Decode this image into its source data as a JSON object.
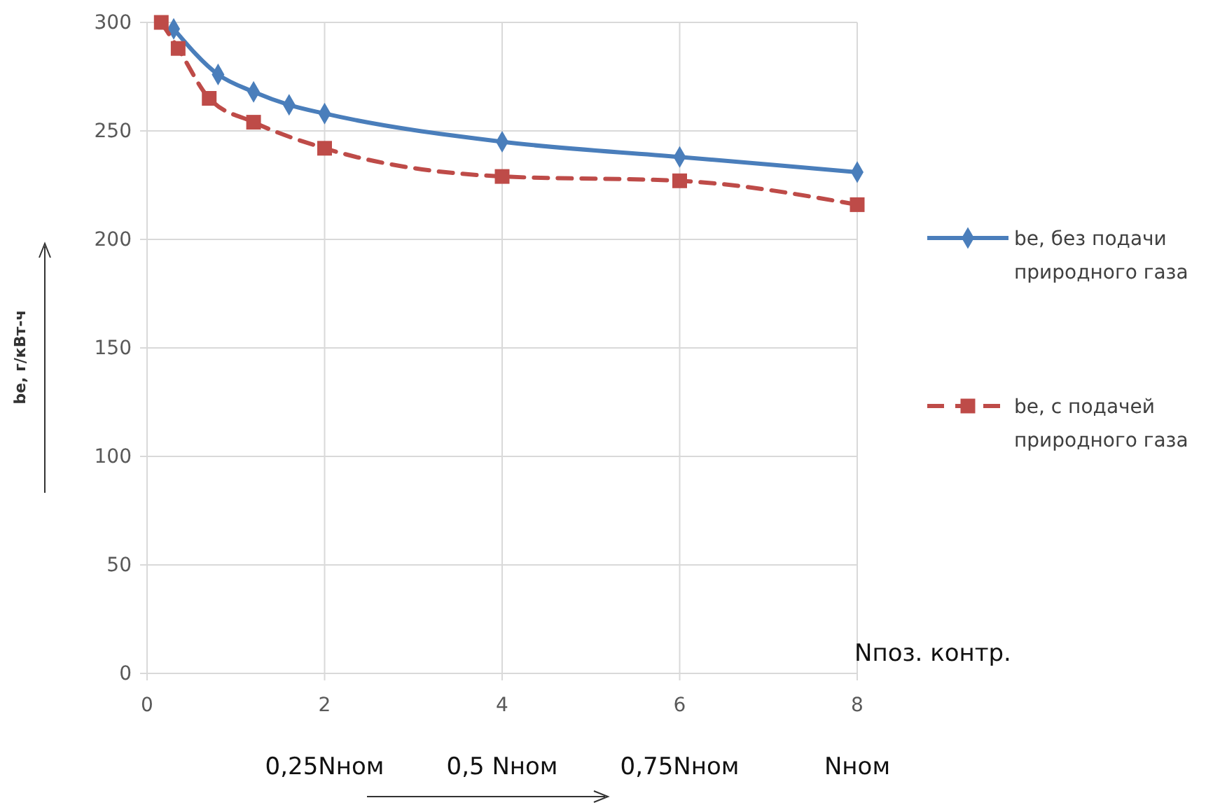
{
  "chart_data": {
    "type": "line",
    "ylabel": "be, г/кВт-ч",
    "xlabel": "Nпоз. контр.",
    "xlim": [
      0,
      8
    ],
    "xticks": [
      0,
      2,
      4,
      6,
      8
    ],
    "ylim": [
      0,
      300
    ],
    "yticks": [
      0,
      50,
      100,
      150,
      200,
      250,
      300
    ],
    "x2lim": [
      0,
      1
    ],
    "x2ticks": [
      {
        "value": 0.25,
        "label": "0,25Nном"
      },
      {
        "value": 0.5,
        "label": "0,5 Nном"
      },
      {
        "value": 0.75,
        "label": "0,75Nном"
      },
      {
        "value": 1,
        "label": "Nном"
      }
    ],
    "grid": true,
    "legend": "right",
    "series": [
      {
        "name": "be, без подачи природного газа",
        "color": "#4a7ebb",
        "marker": "diamond",
        "line_style": "solid",
        "x": [
          0.3,
          0.8,
          1.2,
          1.6,
          2,
          4,
          6,
          8
        ],
        "values": [
          297,
          276,
          268,
          262,
          258,
          245,
          238,
          231
        ]
      },
      {
        "name": "be, с подачей природного газа",
        "color": "#be4b48",
        "marker": "square",
        "line_style": "dashed",
        "x": [
          0.16,
          0.35,
          0.7,
          1.2,
          2,
          4,
          6,
          8
        ],
        "values": [
          300,
          288,
          265,
          254,
          242,
          229,
          227,
          216
        ]
      }
    ]
  }
}
